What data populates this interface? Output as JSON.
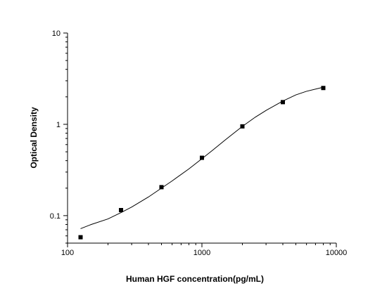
{
  "chart_data": {
    "type": "scatter",
    "title": "",
    "xlabel": "Human HGF concentration(pg/mL)",
    "ylabel": "Optical Density",
    "x_scale": "log",
    "y_scale": "log",
    "xlim": [
      100,
      10000
    ],
    "ylim": [
      0.05,
      10
    ],
    "x_ticks": [
      100,
      1000,
      10000
    ],
    "x_tick_labels": [
      "100",
      "1000",
      "10000"
    ],
    "y_ticks": [
      0.1,
      1,
      10
    ],
    "y_tick_labels": [
      "0.1",
      "1",
      "10"
    ],
    "grid": false,
    "legend": "none",
    "series": [
      {
        "type": "scatter",
        "marker": "square",
        "color": "#000000",
        "x": [
          125,
          250,
          500,
          1000,
          2000,
          4000,
          8000
        ],
        "y": [
          0.058,
          0.115,
          0.205,
          0.43,
          0.95,
          1.75,
          2.5
        ]
      },
      {
        "type": "line",
        "color": "#000000",
        "x": [
          125,
          150,
          200,
          250,
          300,
          400,
          500,
          600,
          800,
          1000,
          1200,
          1500,
          2000,
          2500,
          3000,
          4000,
          5000,
          6000,
          8000
        ],
        "y": [
          0.072,
          0.08,
          0.092,
          0.108,
          0.124,
          0.16,
          0.2,
          0.24,
          0.325,
          0.42,
          0.52,
          0.68,
          0.95,
          1.2,
          1.42,
          1.8,
          2.1,
          2.3,
          2.55
        ]
      }
    ]
  }
}
